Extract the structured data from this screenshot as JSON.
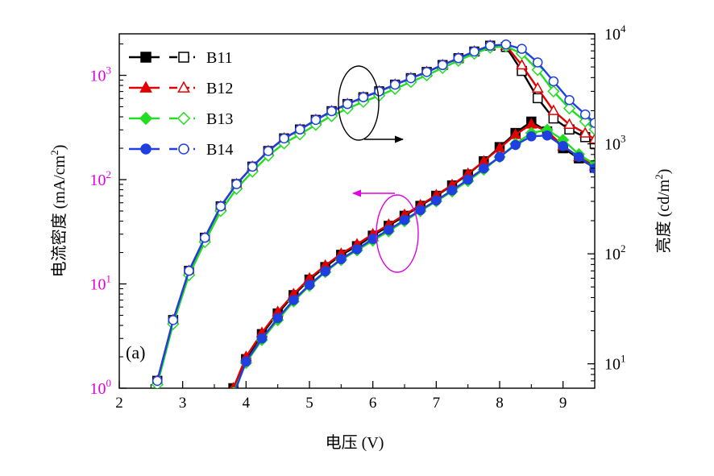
{
  "chart_data": {
    "type": "line",
    "panel_label": "(a)",
    "xlabel": "电压 (V)",
    "ylabel_left": "电流密度 (mA/cm",
    "ylabel_right": "亮度 (cd/m",
    "unit_sup": "2",
    "unit_close": ")",
    "xlim": [
      2,
      9.5
    ],
    "xticks": [
      2,
      3,
      4,
      5,
      6,
      7,
      8,
      9
    ],
    "left_axis": {
      "scale": "log",
      "ylim": [
        1,
        2500
      ],
      "ticks": [
        {
          "base": "10",
          "exp": "0"
        },
        {
          "base": "10",
          "exp": "1"
        },
        {
          "base": "10",
          "exp": "2"
        },
        {
          "base": "10",
          "exp": "3"
        }
      ],
      "tick_values": [
        1,
        10,
        100,
        1000
      ],
      "color": "#e000e0"
    },
    "right_axis": {
      "scale": "log",
      "ylim": [
        6,
        10000
      ],
      "ticks": [
        {
          "base": "10",
          "exp": "1"
        },
        {
          "base": "10",
          "exp": "2"
        },
        {
          "base": "10",
          "exp": "3"
        },
        {
          "base": "10",
          "exp": "4"
        }
      ],
      "tick_values": [
        10,
        100,
        1000,
        10000
      ],
      "color": "#000000"
    },
    "legend": {
      "position": "top-left",
      "entries": [
        "B11",
        "B12",
        "B13",
        "B14"
      ]
    },
    "series": [
      {
        "name": "B11",
        "color": "#000000",
        "marker": "square",
        "current_density": {
          "x": [
            3.8,
            4.0,
            4.25,
            4.5,
            4.75,
            5.0,
            5.25,
            5.5,
            5.75,
            6.0,
            6.25,
            6.5,
            6.75,
            7.0,
            7.25,
            7.5,
            7.75,
            8.0,
            8.25,
            8.5,
            8.75,
            9.0,
            9.25,
            9.5
          ],
          "y": [
            1.0,
            1.9,
            3.3,
            5.2,
            7.8,
            11,
            14.5,
            19,
            23,
            29,
            36,
            45,
            56,
            70,
            88,
            112,
            150,
            205,
            280,
            360,
            290,
            200,
            160,
            130
          ]
        },
        "luminance": {
          "x": [
            2.6,
            2.85,
            3.1,
            3.35,
            3.6,
            3.85,
            4.1,
            4.35,
            4.6,
            4.85,
            5.1,
            5.35,
            5.6,
            5.85,
            6.1,
            6.35,
            6.6,
            6.85,
            7.1,
            7.35,
            7.6,
            7.85,
            8.1,
            8.35,
            8.6,
            8.85,
            9.1,
            9.35,
            9.5
          ],
          "y": [
            7,
            25,
            70,
            140,
            270,
            430,
            620,
            860,
            1120,
            1350,
            1650,
            1980,
            2300,
            2650,
            3000,
            3450,
            3950,
            4500,
            5200,
            6000,
            6900,
            7800,
            7600,
            4600,
            2600,
            1700,
            1350,
            1150,
            1000
          ]
        }
      },
      {
        "name": "B12",
        "color": "#e00000",
        "marker": "triangle",
        "current_density": {
          "x": [
            3.8,
            4.0,
            4.25,
            4.5,
            4.75,
            5.0,
            5.25,
            5.5,
            5.75,
            6.0,
            6.25,
            6.5,
            6.75,
            7.0,
            7.25,
            7.5,
            7.75,
            8.0,
            8.25,
            8.5,
            8.75,
            9.0,
            9.25,
            9.5
          ],
          "y": [
            1.0,
            2.0,
            3.4,
            5.4,
            8.0,
            11.3,
            15,
            19.5,
            24,
            30,
            37,
            46,
            57,
            71,
            89,
            114,
            150,
            200,
            270,
            340,
            290,
            210,
            165,
            135
          ]
        },
        "luminance": {
          "x": [
            2.6,
            2.85,
            3.1,
            3.35,
            3.6,
            3.85,
            4.1,
            4.35,
            4.6,
            4.85,
            5.1,
            5.35,
            5.6,
            5.85,
            6.1,
            6.35,
            6.6,
            6.85,
            7.1,
            7.35,
            7.6,
            7.85,
            8.1,
            8.35,
            8.6,
            8.85,
            9.1,
            9.35,
            9.5
          ],
          "y": [
            7,
            25,
            70,
            140,
            270,
            430,
            620,
            860,
            1120,
            1350,
            1650,
            1980,
            2300,
            2650,
            3000,
            3450,
            3950,
            4500,
            5200,
            6000,
            6900,
            7800,
            7800,
            5200,
            3200,
            2000,
            1500,
            1250,
            1100
          ]
        }
      },
      {
        "name": "B13",
        "color": "#22dd22",
        "marker": "diamond",
        "current_density": {
          "x": [
            3.8,
            4.0,
            4.25,
            4.5,
            4.75,
            5.0,
            5.25,
            5.5,
            5.75,
            6.0,
            6.25,
            6.5,
            6.75,
            7.0,
            7.25,
            7.5,
            7.75,
            8.0,
            8.25,
            8.5,
            8.75,
            9.0,
            9.25,
            9.5
          ],
          "y": [
            0.9,
            1.75,
            2.9,
            4.5,
            6.8,
            9.6,
            13,
            17,
            21,
            26,
            32,
            40,
            50,
            62,
            77,
            97,
            125,
            165,
            220,
            280,
            300,
            240,
            175,
            140
          ]
        },
        "luminance": {
          "x": [
            2.6,
            2.85,
            3.1,
            3.35,
            3.6,
            3.85,
            4.1,
            4.35,
            4.6,
            4.85,
            5.1,
            5.35,
            5.6,
            5.85,
            6.1,
            6.35,
            6.6,
            6.85,
            7.1,
            7.35,
            7.6,
            7.85,
            8.1,
            8.35,
            8.6,
            8.85,
            9.1,
            9.35,
            9.5
          ],
          "y": [
            6.5,
            23,
            64,
            128,
            245,
            390,
            560,
            780,
            1010,
            1220,
            1490,
            1790,
            2090,
            2410,
            2740,
            3160,
            3650,
            4200,
            4900,
            5700,
            6600,
            7500,
            7700,
            6600,
            4700,
            3000,
            2100,
            1600,
            1350
          ]
        }
      },
      {
        "name": "B14",
        "color": "#1f3fe0",
        "marker": "circle",
        "current_density": {
          "x": [
            3.8,
            4.0,
            4.25,
            4.5,
            4.75,
            5.0,
            5.25,
            5.5,
            5.75,
            6.0,
            6.25,
            6.5,
            6.75,
            7.0,
            7.25,
            7.5,
            7.75,
            8.0,
            8.25,
            8.5,
            8.75,
            9.0,
            9.25,
            9.5
          ],
          "y": [
            0.85,
            1.8,
            3.0,
            4.7,
            7.0,
            9.8,
            13.2,
            17.3,
            21.5,
            27,
            33,
            41,
            51,
            63,
            79,
            100,
            128,
            165,
            215,
            260,
            265,
            210,
            165,
            128
          ]
        },
        "luminance": {
          "x": [
            2.6,
            2.85,
            3.1,
            3.35,
            3.6,
            3.85,
            4.1,
            4.35,
            4.6,
            4.85,
            5.1,
            5.35,
            5.6,
            5.85,
            6.1,
            6.35,
            6.6,
            6.85,
            7.1,
            7.35,
            7.6,
            7.85,
            8.1,
            8.35,
            8.6,
            8.85,
            9.1,
            9.35,
            9.5
          ],
          "y": [
            7,
            25,
            70,
            140,
            270,
            430,
            620,
            860,
            1120,
            1350,
            1650,
            1980,
            2300,
            2650,
            3000,
            3450,
            3950,
            4500,
            5200,
            6000,
            6900,
            7800,
            8000,
            7300,
            5500,
            3700,
            2500,
            1850,
            1550
          ]
        }
      }
    ]
  }
}
